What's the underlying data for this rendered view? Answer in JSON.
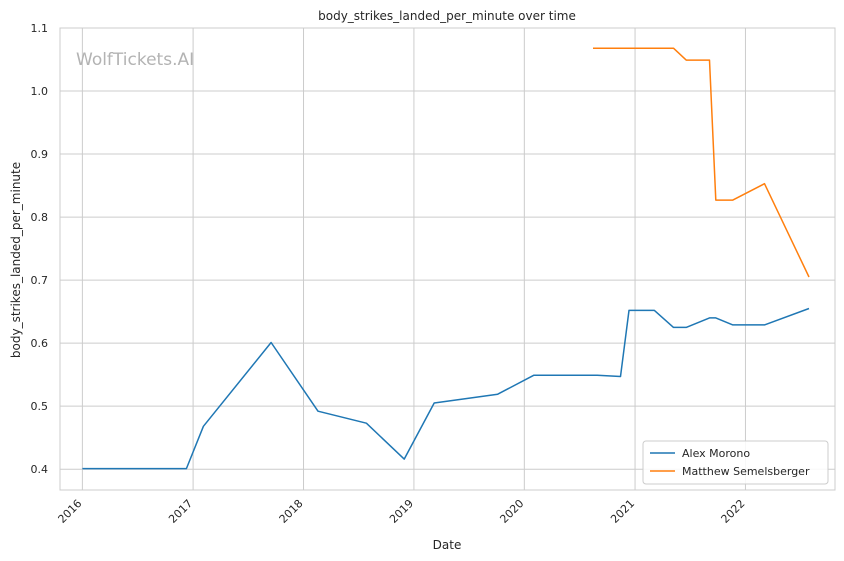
{
  "chart_data": {
    "type": "line",
    "title": "body_strikes_landed_per_minute over time",
    "xlabel": "Date",
    "ylabel": "body_strikes_landed_per_minute",
    "watermark": "WolfTickets.AI",
    "x_ticks": [
      "2016",
      "2017",
      "2018",
      "2019",
      "2020",
      "2021",
      "2022"
    ],
    "y_ticks": [
      "0.4",
      "0.5",
      "0.6",
      "0.7",
      "0.8",
      "0.9",
      "1.0",
      "1.1"
    ],
    "xlim": [
      "2015-10-19",
      "2022-10-24"
    ],
    "ylim": [
      0.367,
      1.1
    ],
    "grid": true,
    "legend_position": "lower-right",
    "series": [
      {
        "name": "Alex Morono",
        "color": "#1f77b4",
        "points": [
          [
            "2016-01-01",
            0.401
          ],
          [
            "2016-12-10",
            0.401
          ],
          [
            "2017-02-04",
            0.468
          ],
          [
            "2017-09-16",
            0.601
          ],
          [
            "2018-02-18",
            0.492
          ],
          [
            "2018-07-28",
            0.473
          ],
          [
            "2018-11-30",
            0.416
          ],
          [
            "2019-03-09",
            0.505
          ],
          [
            "2019-10-05",
            0.519
          ],
          [
            "2020-02-01",
            0.549
          ],
          [
            "2020-08-29",
            0.549
          ],
          [
            "2020-11-14",
            0.547
          ],
          [
            "2020-12-12",
            0.652
          ],
          [
            "2021-03-06",
            0.652
          ],
          [
            "2021-05-08",
            0.625
          ],
          [
            "2021-06-19",
            0.625
          ],
          [
            "2021-09-04",
            0.64
          ],
          [
            "2021-09-25",
            0.64
          ],
          [
            "2021-11-20",
            0.629
          ],
          [
            "2022-03-05",
            0.629
          ],
          [
            "2022-07-30",
            0.655
          ]
        ]
      },
      {
        "name": "Matthew Semelsberger",
        "color": "#ff7f0e",
        "points": [
          [
            "2020-08-15",
            1.068
          ],
          [
            "2021-05-08",
            1.068
          ],
          [
            "2021-06-19",
            1.049
          ],
          [
            "2021-09-04",
            1.049
          ],
          [
            "2021-09-25",
            0.827
          ],
          [
            "2021-11-20",
            0.827
          ],
          [
            "2022-03-05",
            0.853
          ],
          [
            "2022-07-30",
            0.705
          ]
        ]
      }
    ]
  }
}
